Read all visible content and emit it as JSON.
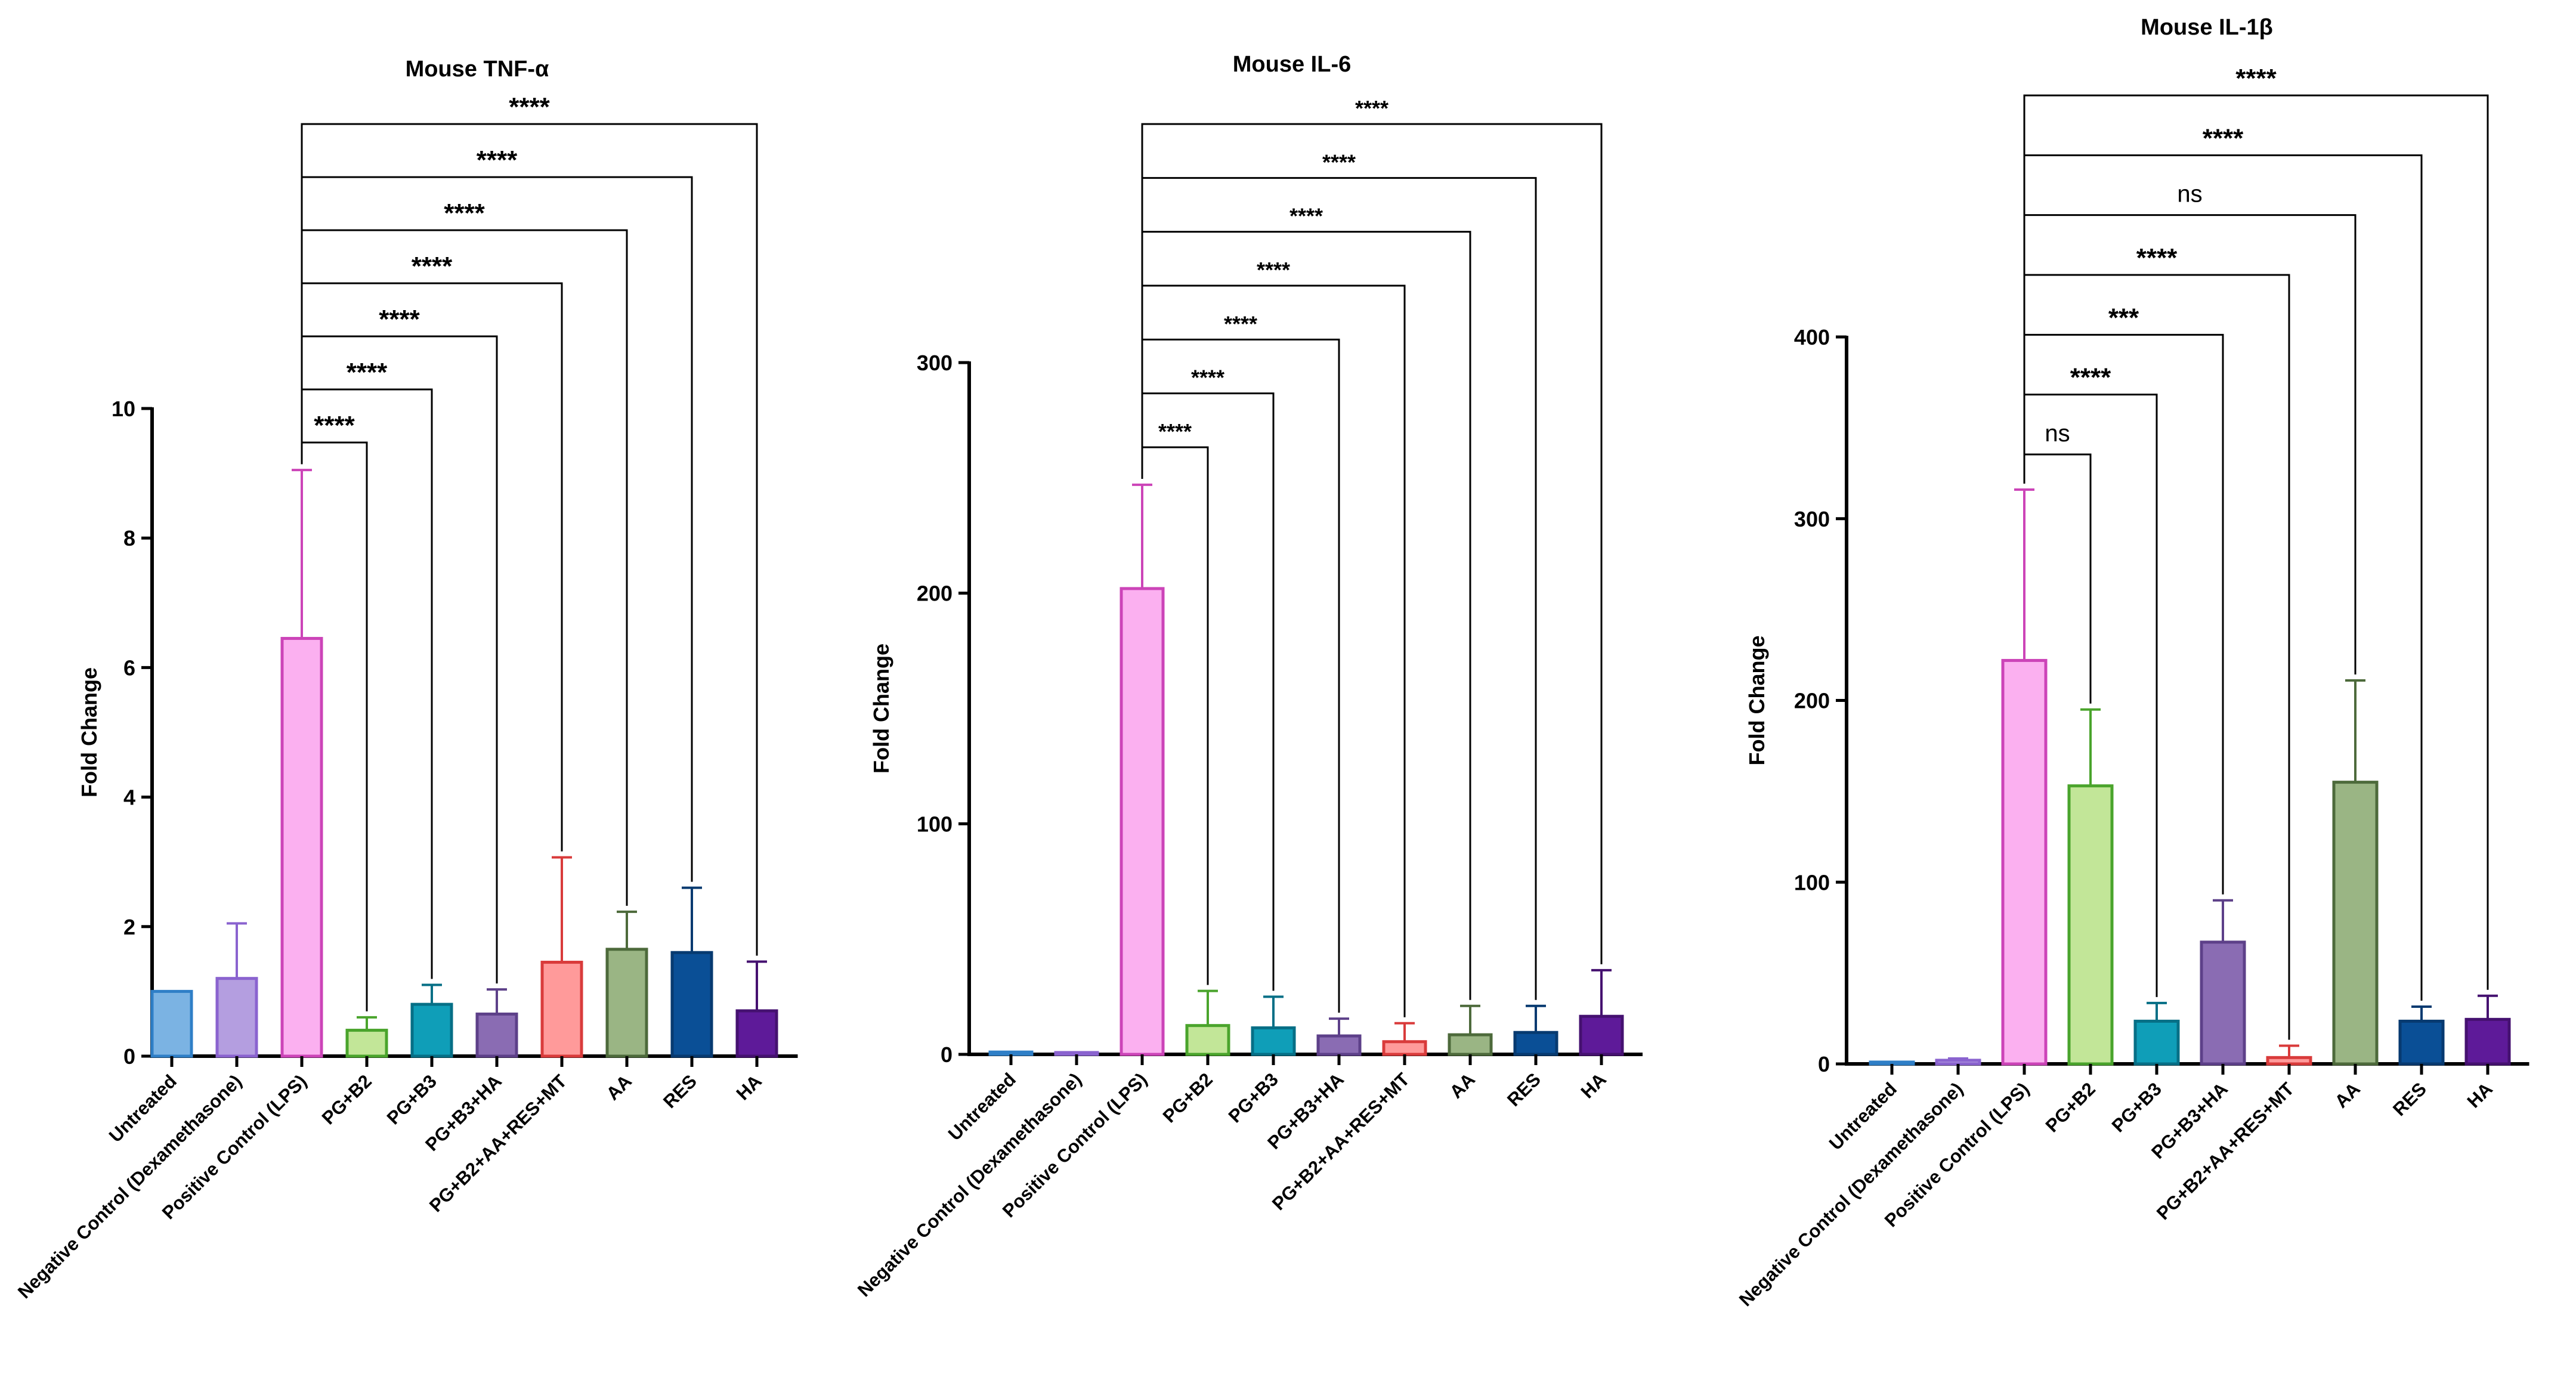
{
  "chart_data": [
    {
      "type": "bar",
      "title": "Mouse TNF-α",
      "xlabel": "",
      "ylabel": "Fold Change",
      "ylim": [
        0,
        10
      ],
      "yticks": [
        0,
        2,
        4,
        6,
        8,
        10
      ],
      "categories": [
        "Untreated",
        "Negative Control (Dexamethasone)",
        "Positive Control (LPS)",
        "PG+B2",
        "PG+B3",
        "PG+B3+HA",
        "PG+B2+AA+RES+MT",
        "AA",
        "RES",
        "HA"
      ],
      "values": [
        1.0,
        1.2,
        6.45,
        0.4,
        0.8,
        0.65,
        1.45,
        1.65,
        1.6,
        0.7
      ],
      "errors": [
        0,
        0.85,
        2.6,
        0.2,
        0.3,
        0.38,
        1.62,
        0.58,
        1.0,
        0.76
      ],
      "comparisons": [
        {
          "from": "Positive Control (LPS)",
          "to": "PG+B2",
          "label": "****"
        },
        {
          "from": "Positive Control (LPS)",
          "to": "PG+B3",
          "label": "****"
        },
        {
          "from": "Positive Control (LPS)",
          "to": "PG+B3+HA",
          "label": "****"
        },
        {
          "from": "Positive Control (LPS)",
          "to": "PG+B2+AA+RES+MT",
          "label": "****"
        },
        {
          "from": "Positive Control (LPS)",
          "to": "AA",
          "label": "****"
        },
        {
          "from": "Positive Control (LPS)",
          "to": "RES",
          "label": "****"
        },
        {
          "from": "Positive Control (LPS)",
          "to": "HA",
          "label": "****"
        }
      ]
    },
    {
      "type": "bar",
      "title": "Mouse IL-6",
      "xlabel": "",
      "ylabel": "Fold Change",
      "ylim": [
        0,
        300
      ],
      "yticks": [
        0,
        100,
        200,
        300
      ],
      "categories": [
        "Untreated",
        "Negative Control (Dexamethasone)",
        "Positive Control (LPS)",
        "PG+B2",
        "PG+B3",
        "PG+B3+HA",
        "PG+B2+AA+RES+MT",
        "AA",
        "RES",
        "HA"
      ],
      "values": [
        1.0,
        0.8,
        202,
        12.5,
        11.5,
        8.0,
        5.5,
        8.5,
        9.5,
        16.5
      ],
      "errors": [
        0,
        0,
        45,
        15,
        13.5,
        7.5,
        8.0,
        12.5,
        11.5,
        20
      ],
      "comparisons": [
        {
          "from": "Positive Control (LPS)",
          "to": "PG+B2",
          "label": "****"
        },
        {
          "from": "Positive Control (LPS)",
          "to": "PG+B3",
          "label": "****"
        },
        {
          "from": "Positive Control (LPS)",
          "to": "PG+B3+HA",
          "label": "****"
        },
        {
          "from": "Positive Control (LPS)",
          "to": "PG+B2+AA+RES+MT",
          "label": "****"
        },
        {
          "from": "Positive Control (LPS)",
          "to": "AA",
          "label": "****"
        },
        {
          "from": "Positive Control (LPS)",
          "to": "RES",
          "label": "****"
        },
        {
          "from": "Positive Control (LPS)",
          "to": "HA",
          "label": "****"
        }
      ]
    },
    {
      "type": "bar",
      "title": "Mouse IL-1β",
      "xlabel": "",
      "ylabel": "Fold Change",
      "ylim": [
        0,
        400
      ],
      "yticks": [
        0,
        100,
        200,
        300,
        400
      ],
      "categories": [
        "Untreated",
        "Negative Control (Dexamethasone)",
        "Positive Control (LPS)",
        "PG+B2",
        "PG+B3",
        "PG+B3+HA",
        "PG+B2+AA+RES+MT",
        "AA",
        "RES",
        "HA"
      ],
      "values": [
        1.0,
        2.0,
        222,
        153,
        23.5,
        67,
        3.5,
        155,
        23.5,
        24.5
      ],
      "errors": [
        0,
        1.0,
        94,
        42,
        10,
        23,
        6.5,
        56,
        8,
        13
      ],
      "comparisons": [
        {
          "from": "Positive Control (LPS)",
          "to": "PG+B2",
          "label": "ns"
        },
        {
          "from": "Positive Control (LPS)",
          "to": "PG+B3",
          "label": "****"
        },
        {
          "from": "Positive Control (LPS)",
          "to": "PG+B3+HA",
          "label": "***"
        },
        {
          "from": "Positive Control (LPS)",
          "to": "PG+B2+AA+RES+MT",
          "label": "****"
        },
        {
          "from": "Positive Control (LPS)",
          "to": "AA",
          "label": "ns"
        },
        {
          "from": "Positive Control (LPS)",
          "to": "RES",
          "label": "****"
        },
        {
          "from": "Positive Control (LPS)",
          "to": "HA",
          "label": "****"
        }
      ]
    }
  ],
  "colors": {
    "fills": [
      "#7bb3e3",
      "#b49ee0",
      "#fbb0f0",
      "#c2e698",
      "#0f9eb8",
      "#8a6cb3",
      "#ff9a9a",
      "#9ab584",
      "#0a4f96",
      "#5e1a99"
    ],
    "strokes": [
      "#2f7fc7",
      "#8a63cf",
      "#cc44b8",
      "#4aa42c",
      "#066f86",
      "#5d4089",
      "#d93b3b",
      "#4d6a3b",
      "#073a70",
      "#451170"
    ]
  }
}
